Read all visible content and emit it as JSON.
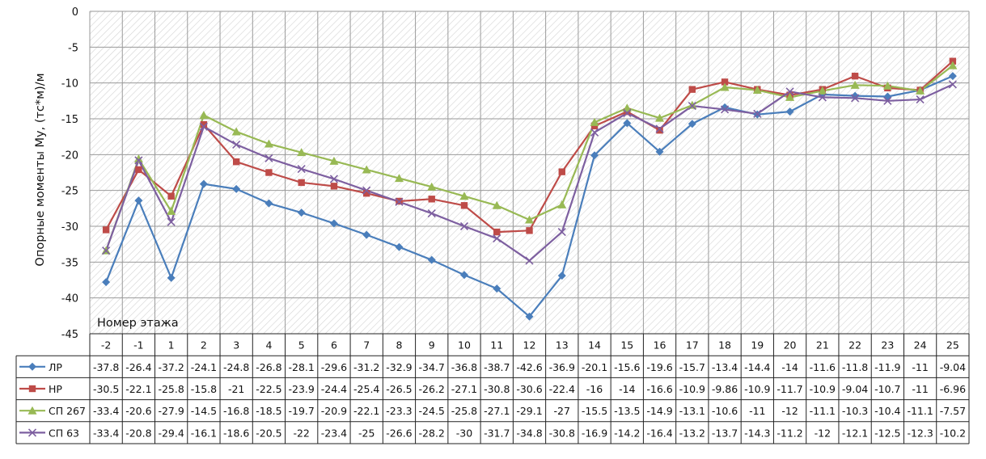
{
  "chart_data": {
    "type": "line",
    "title": "",
    "xlabel": "Номер этажа",
    "ylabel": "Опорные моменты My, (тс*м)/м",
    "ylim": [
      -45,
      0
    ],
    "y_ticks": [
      0,
      -5,
      -10,
      -15,
      -20,
      -25,
      -30,
      -35,
      -40,
      -45
    ],
    "grid": true,
    "legend": "data-table-below",
    "categories": [
      "-2",
      "-1",
      "1",
      "2",
      "3",
      "4",
      "5",
      "6",
      "7",
      "8",
      "9",
      "10",
      "11",
      "12",
      "13",
      "14",
      "15",
      "16",
      "17",
      "18",
      "19",
      "20",
      "21",
      "22",
      "23",
      "24",
      "25"
    ],
    "series": [
      {
        "name": "ЛР",
        "color": "#4a7ebb",
        "marker": "diamond",
        "values": [
          -37.8,
          -26.4,
          -37.2,
          -24.1,
          -24.8,
          -26.8,
          -28.1,
          -29.6,
          -31.2,
          -32.9,
          -34.7,
          -36.8,
          -38.7,
          -42.6,
          -36.9,
          -20.1,
          -15.6,
          -19.6,
          -15.7,
          -13.4,
          -14.4,
          -14,
          -11.6,
          -11.8,
          -11.9,
          -11,
          -9.04
        ]
      },
      {
        "name": "НР",
        "color": "#be4b48",
        "marker": "square",
        "values": [
          -30.5,
          -22.1,
          -25.8,
          -15.8,
          -21,
          -22.5,
          -23.9,
          -24.4,
          -25.4,
          -26.5,
          -26.2,
          -27.1,
          -30.8,
          -30.6,
          -22.4,
          -16,
          -14,
          -16.6,
          -10.9,
          -9.86,
          -10.9,
          -11.7,
          -10.9,
          -9.04,
          -10.7,
          -11,
          -6.96
        ]
      },
      {
        "name": "СП 267",
        "color": "#98b954",
        "marker": "triangle",
        "values": [
          -33.4,
          -20.6,
          -27.9,
          -14.5,
          -16.8,
          -18.5,
          -19.7,
          -20.9,
          -22.1,
          -23.3,
          -24.5,
          -25.8,
          -27.1,
          -29.1,
          -27,
          -15.5,
          -13.5,
          -14.9,
          -13.1,
          -10.6,
          -11,
          -12,
          -11.1,
          -10.3,
          -10.4,
          -11.1,
          -7.57
        ]
      },
      {
        "name": "СП 63",
        "color": "#7d5fa0",
        "marker": "x",
        "values": [
          -33.4,
          -20.8,
          -29.4,
          -16.1,
          -18.6,
          -20.5,
          -22,
          -23.4,
          -25,
          -26.6,
          -28.2,
          -30,
          -31.7,
          -34.8,
          -30.8,
          -16.9,
          -14.2,
          -16.4,
          -13.2,
          -13.7,
          -14.3,
          -11.2,
          -12,
          -12.1,
          -12.5,
          -12.3,
          -10.2
        ]
      }
    ]
  }
}
